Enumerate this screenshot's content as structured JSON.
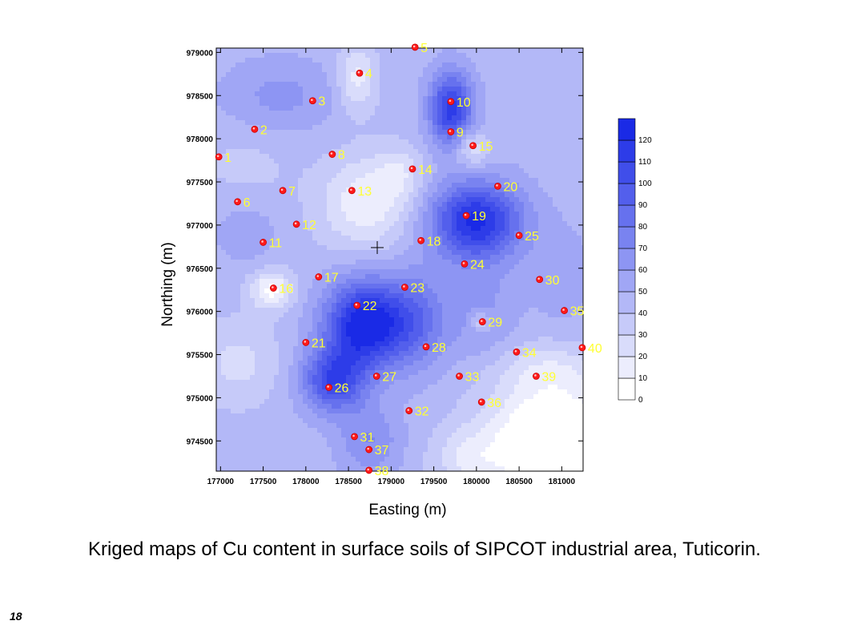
{
  "caption": "Kriged maps of Cu content in surface soils of SIPCOT industrial area, Tuticorin.",
  "slide_number": "18",
  "map": {
    "x_axis_title": "Easting (m)",
    "y_axis_title": "Northing (m)",
    "x_range": [
      176950,
      181250
    ],
    "y_range": [
      974150,
      979050
    ],
    "x_ticks": [
      "177000",
      "177500",
      "178000",
      "178500",
      "179000",
      "179500",
      "180000",
      "180500",
      "181000"
    ],
    "y_ticks": [
      "974500",
      "975000",
      "975500",
      "976000",
      "976500",
      "977000",
      "977500",
      "978000",
      "978500",
      "979000"
    ],
    "legend": {
      "levels": [
        0,
        10,
        20,
        30,
        40,
        50,
        60,
        70,
        80,
        90,
        100,
        110,
        120,
        130
      ],
      "tick_labels": [
        "0",
        "10",
        "20",
        "30",
        "40",
        "50",
        "60",
        "70",
        "80",
        "90",
        "100",
        "110",
        "120"
      ],
      "color_low": "#ffffff",
      "color_high": "#1a2ae6"
    },
    "background_level": 45,
    "color_scale_max": 130,
    "sample_points": [
      {
        "label": "1",
        "easting": 176980,
        "northing": 977790
      },
      {
        "label": "2",
        "easting": 177400,
        "northing": 978110
      },
      {
        "label": "3",
        "easting": 178080,
        "northing": 978440
      },
      {
        "label": "4",
        "easting": 178630,
        "northing": 978760
      },
      {
        "label": "5",
        "easting": 179280,
        "northing": 979060
      },
      {
        "label": "6",
        "easting": 177200,
        "northing": 977270
      },
      {
        "label": "7",
        "easting": 177730,
        "northing": 977400
      },
      {
        "label": "8",
        "easting": 178310,
        "northing": 977820
      },
      {
        "label": "9",
        "easting": 179700,
        "northing": 978080
      },
      {
        "label": "10",
        "easting": 179700,
        "northing": 978430
      },
      {
        "label": "11",
        "easting": 177500,
        "northing": 976800
      },
      {
        "label": "12",
        "easting": 177890,
        "northing": 977010
      },
      {
        "label": "13",
        "easting": 178540,
        "northing": 977400
      },
      {
        "label": "14",
        "easting": 179250,
        "northing": 977650
      },
      {
        "label": "15",
        "easting": 179960,
        "northing": 977920
      },
      {
        "label": "16",
        "easting": 177620,
        "northing": 976270
      },
      {
        "label": "17",
        "easting": 178150,
        "northing": 976400
      },
      {
        "label": "18",
        "easting": 179350,
        "northing": 976820
      },
      {
        "label": "19",
        "easting": 179880,
        "northing": 977110
      },
      {
        "label": "20",
        "easting": 180250,
        "northing": 977450
      },
      {
        "label": "21",
        "easting": 178000,
        "northing": 975640
      },
      {
        "label": "22",
        "easting": 178600,
        "northing": 976070
      },
      {
        "label": "23",
        "easting": 179160,
        "northing": 976280
      },
      {
        "label": "24",
        "easting": 179860,
        "northing": 976550
      },
      {
        "label": "25",
        "easting": 180500,
        "northing": 976880
      },
      {
        "label": "26",
        "easting": 178270,
        "northing": 975120
      },
      {
        "label": "27",
        "easting": 178830,
        "northing": 975250
      },
      {
        "label": "28",
        "easting": 179410,
        "northing": 975590
      },
      {
        "label": "29",
        "easting": 180070,
        "northing": 975880
      },
      {
        "label": "30",
        "easting": 180740,
        "northing": 976370
      },
      {
        "label": "31",
        "easting": 178570,
        "northing": 974550
      },
      {
        "label": "32",
        "easting": 179210,
        "northing": 974850
      },
      {
        "label": "33",
        "easting": 179800,
        "northing": 975250
      },
      {
        "label": "34",
        "easting": 180470,
        "northing": 975530
      },
      {
        "label": "35",
        "easting": 181030,
        "northing": 976010
      },
      {
        "label": "36",
        "easting": 180060,
        "northing": 974950
      },
      {
        "label": "37",
        "easting": 178740,
        "northing": 974400
      },
      {
        "label": "38",
        "easting": 178740,
        "northing": 974160
      },
      {
        "label": "39",
        "easting": 180700,
        "northing": 975250
      },
      {
        "label": "40",
        "easting": 181240,
        "northing": 975580
      }
    ],
    "cu_features": [
      {
        "easting": 178700,
        "northing": 975850,
        "peak": 88,
        "sigma_e": 330,
        "sigma_n": 360
      },
      {
        "easting": 178320,
        "northing": 975200,
        "peak": 60,
        "sigma_e": 260,
        "sigma_n": 260
      },
      {
        "easting": 178750,
        "northing": 974500,
        "peak": 25,
        "sigma_e": 260,
        "sigma_n": 300
      },
      {
        "easting": 179300,
        "northing": 975900,
        "peak": 35,
        "sigma_e": 260,
        "sigma_n": 400
      },
      {
        "easting": 180000,
        "northing": 977050,
        "peak": 78,
        "sigma_e": 380,
        "sigma_n": 320
      },
      {
        "easting": 179700,
        "northing": 978350,
        "peak": 70,
        "sigma_e": 180,
        "sigma_n": 300
      },
      {
        "easting": 180050,
        "northing": 976000,
        "peak": 18,
        "sigma_e": 300,
        "sigma_n": 420
      },
      {
        "easting": 177700,
        "northing": 978500,
        "peak": 18,
        "sigma_e": 480,
        "sigma_n": 300
      },
      {
        "easting": 177300,
        "northing": 976900,
        "peak": 12,
        "sigma_e": 260,
        "sigma_n": 250
      },
      {
        "easting": 181000,
        "northing": 976400,
        "peak": 12,
        "sigma_e": 250,
        "sigma_n": 400
      },
      {
        "easting": 178700,
        "northing": 977250,
        "peak": -33,
        "sigma_e": 380,
        "sigma_n": 380
      },
      {
        "easting": 179100,
        "northing": 977600,
        "peak": -18,
        "sigma_e": 200,
        "sigma_n": 220
      },
      {
        "easting": 177600,
        "northing": 976250,
        "peak": -38,
        "sigma_e": 180,
        "sigma_n": 160
      },
      {
        "easting": 178600,
        "northing": 978700,
        "peak": -30,
        "sigma_e": 160,
        "sigma_n": 280
      },
      {
        "easting": 179950,
        "northing": 977880,
        "peak": -28,
        "sigma_e": 140,
        "sigma_n": 140
      },
      {
        "easting": 180050,
        "northing": 975870,
        "peak": -25,
        "sigma_e": 90,
        "sigma_n": 90
      },
      {
        "easting": 177300,
        "northing": 977700,
        "peak": -8,
        "sigma_e": 400,
        "sigma_n": 300
      },
      {
        "easting": 177200,
        "northing": 975400,
        "peak": -18,
        "sigma_e": 350,
        "sigma_n": 350
      },
      {
        "easting": 180900,
        "northing": 974500,
        "peak": -60,
        "sigma_e": 550,
        "sigma_n": 500
      },
      {
        "easting": 179900,
        "northing": 974300,
        "peak": -20,
        "sigma_e": 300,
        "sigma_n": 250
      },
      {
        "easting": 180800,
        "northing": 975350,
        "peak": -15,
        "sigma_e": 450,
        "sigma_n": 200
      }
    ]
  }
}
